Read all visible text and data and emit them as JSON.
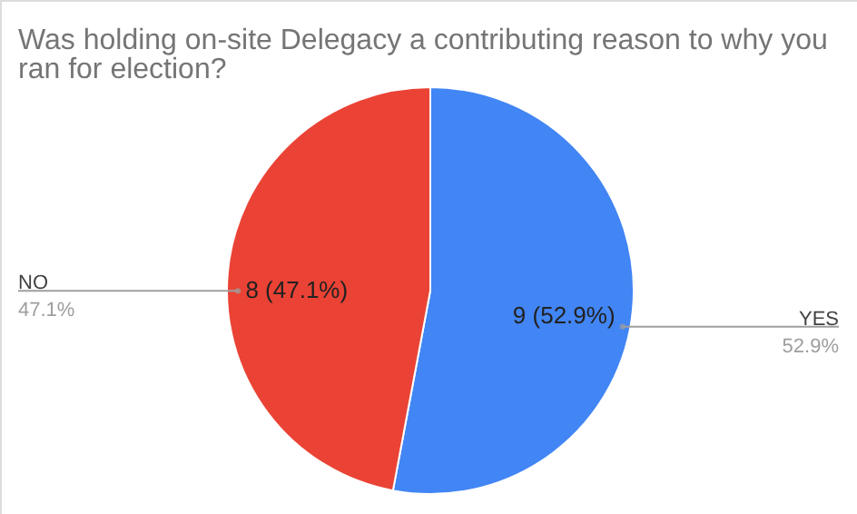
{
  "chart_data": {
    "type": "pie",
    "title": "Was holding on-site Delegacy a contributing reason to why you ran for election?",
    "categories": [
      "YES",
      "NO"
    ],
    "values": [
      9,
      8
    ],
    "colors": [
      "#4285f4",
      "#ea4335"
    ],
    "value_labels": [
      "9 (52.9%)",
      "8 (47.1%)"
    ],
    "annotations": [
      "52.9%",
      "47.1%"
    ]
  }
}
